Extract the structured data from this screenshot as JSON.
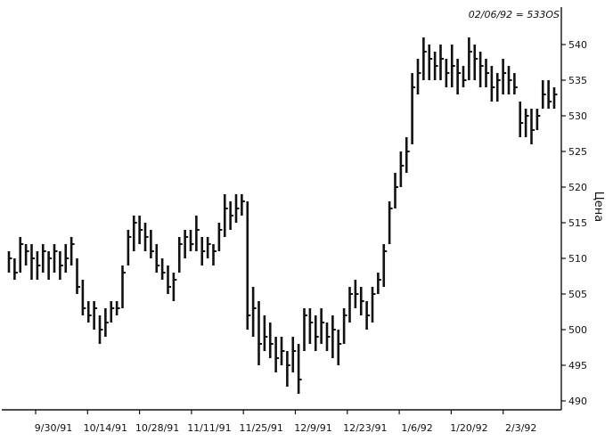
{
  "chart_data": {
    "type": "ohlc",
    "annotation": "02/06/92 = 533OS",
    "ylabel": "Цена",
    "ylim": [
      489,
      543
    ],
    "y_ticks": [
      490,
      495,
      500,
      505,
      510,
      515,
      520,
      525,
      530,
      535,
      540
    ],
    "x_ticks": [
      "9/30/91",
      "10/14/91",
      "10/28/91",
      "11/11/91",
      "11/25/91",
      "12/9/91",
      "12/23/91",
      "1/6/92",
      "1/20/92",
      "2/3/92"
    ],
    "grid": false,
    "bars": [
      {
        "high": 511,
        "low": 508,
        "close": 510
      },
      {
        "high": 510,
        "low": 507,
        "close": 508
      },
      {
        "high": 513,
        "low": 508,
        "close": 512
      },
      {
        "high": 512,
        "low": 509,
        "close": 511
      },
      {
        "high": 512,
        "low": 507,
        "close": 510
      },
      {
        "high": 511,
        "low": 507,
        "close": 509
      },
      {
        "high": 512,
        "low": 508,
        "close": 511
      },
      {
        "high": 511,
        "low": 507,
        "close": 510
      },
      {
        "high": 512,
        "low": 508,
        "close": 511
      },
      {
        "high": 511,
        "low": 507,
        "close": 509
      },
      {
        "high": 512,
        "low": 508,
        "close": 510
      },
      {
        "high": 513,
        "low": 509,
        "close": 512
      },
      {
        "high": 510,
        "low": 505,
        "close": 506
      },
      {
        "high": 507,
        "low": 502,
        "close": 503
      },
      {
        "high": 504,
        "low": 501,
        "close": 502
      },
      {
        "high": 504,
        "low": 500,
        "close": 503
      },
      {
        "high": 502,
        "low": 498,
        "close": 500
      },
      {
        "high": 503,
        "low": 499,
        "close": 501
      },
      {
        "high": 504,
        "low": 501,
        "close": 503
      },
      {
        "high": 504,
        "low": 502,
        "close": 503
      },
      {
        "high": 509,
        "low": 503,
        "close": 508
      },
      {
        "high": 514,
        "low": 509,
        "close": 513
      },
      {
        "high": 516,
        "low": 511,
        "close": 515
      },
      {
        "high": 516,
        "low": 512,
        "close": 514
      },
      {
        "high": 515,
        "low": 511,
        "close": 513
      },
      {
        "high": 514,
        "low": 510,
        "close": 511
      },
      {
        "high": 512,
        "low": 508,
        "close": 509
      },
      {
        "high": 510,
        "low": 507,
        "close": 508
      },
      {
        "high": 509,
        "low": 505,
        "close": 506
      },
      {
        "high": 508,
        "low": 504,
        "close": 507
      },
      {
        "high": 513,
        "low": 508,
        "close": 512
      },
      {
        "high": 514,
        "low": 510,
        "close": 513
      },
      {
        "high": 514,
        "low": 511,
        "close": 512
      },
      {
        "high": 516,
        "low": 511,
        "close": 514
      },
      {
        "high": 513,
        "low": 509,
        "close": 511
      },
      {
        "high": 513,
        "low": 510,
        "close": 512
      },
      {
        "high": 512,
        "low": 509,
        "close": 511
      },
      {
        "high": 515,
        "low": 511,
        "close": 514
      },
      {
        "high": 519,
        "low": 513,
        "close": 517
      },
      {
        "high": 518,
        "low": 514,
        "close": 516
      },
      {
        "high": 519,
        "low": 515,
        "close": 517
      },
      {
        "high": 519,
        "low": 516,
        "close": 518
      },
      {
        "high": 518,
        "low": 500,
        "close": 502
      },
      {
        "high": 506,
        "low": 499,
        "close": 503
      },
      {
        "high": 504,
        "low": 495,
        "close": 498
      },
      {
        "high": 502,
        "low": 497,
        "close": 499
      },
      {
        "high": 501,
        "low": 496,
        "close": 498
      },
      {
        "high": 499,
        "low": 494,
        "close": 496
      },
      {
        "high": 499,
        "low": 495,
        "close": 497
      },
      {
        "high": 497,
        "low": 492,
        "close": 495
      },
      {
        "high": 499,
        "low": 494,
        "close": 497
      },
      {
        "high": 498,
        "low": 491,
        "close": 493
      },
      {
        "high": 503,
        "low": 497,
        "close": 502
      },
      {
        "high": 503,
        "low": 498,
        "close": 501
      },
      {
        "high": 502,
        "low": 497,
        "close": 499
      },
      {
        "high": 503,
        "low": 498,
        "close": 501
      },
      {
        "high": 501,
        "low": 497,
        "close": 499
      },
      {
        "high": 502,
        "low": 496,
        "close": 500
      },
      {
        "high": 500,
        "low": 495,
        "close": 498
      },
      {
        "high": 503,
        "low": 498,
        "close": 502
      },
      {
        "high": 506,
        "low": 501,
        "close": 505
      },
      {
        "high": 507,
        "low": 503,
        "close": 505
      },
      {
        "high": 506,
        "low": 502,
        "close": 504
      },
      {
        "high": 504,
        "low": 500,
        "close": 502
      },
      {
        "high": 506,
        "low": 501,
        "close": 505
      },
      {
        "high": 508,
        "low": 505,
        "close": 507
      },
      {
        "high": 512,
        "low": 506,
        "close": 511
      },
      {
        "high": 518,
        "low": 512,
        "close": 517
      },
      {
        "high": 522,
        "low": 517,
        "close": 520
      },
      {
        "high": 525,
        "low": 520,
        "close": 523
      },
      {
        "high": 527,
        "low": 522,
        "close": 525
      },
      {
        "high": 536,
        "low": 526,
        "close": 534
      },
      {
        "high": 538,
        "low": 533,
        "close": 536
      },
      {
        "high": 541,
        "low": 535,
        "close": 539
      },
      {
        "high": 540,
        "low": 535,
        "close": 538
      },
      {
        "high": 539,
        "low": 535,
        "close": 537
      },
      {
        "high": 540,
        "low": 535,
        "close": 538
      },
      {
        "high": 538,
        "low": 534,
        "close": 536
      },
      {
        "high": 540,
        "low": 534,
        "close": 537
      },
      {
        "high": 538,
        "low": 533,
        "close": 536
      },
      {
        "high": 537,
        "low": 534,
        "close": 535
      },
      {
        "high": 541,
        "low": 535,
        "close": 539
      },
      {
        "high": 540,
        "low": 535,
        "close": 538
      },
      {
        "high": 539,
        "low": 534,
        "close": 537
      },
      {
        "high": 538,
        "low": 534,
        "close": 536
      },
      {
        "high": 537,
        "low": 532,
        "close": 534
      },
      {
        "high": 536,
        "low": 532,
        "close": 535
      },
      {
        "high": 538,
        "low": 533,
        "close": 536
      },
      {
        "high": 537,
        "low": 533,
        "close": 535
      },
      {
        "high": 536,
        "low": 533,
        "close": 534
      },
      {
        "high": 532,
        "low": 527,
        "close": 529
      },
      {
        "high": 531,
        "low": 527,
        "close": 530
      },
      {
        "high": 531,
        "low": 526,
        "close": 528
      },
      {
        "high": 531,
        "low": 528,
        "close": 530
      },
      {
        "high": 535,
        "low": 531,
        "close": 533
      },
      {
        "high": 535,
        "low": 531,
        "close": 532
      },
      {
        "high": 534,
        "low": 531,
        "close": 533
      }
    ]
  }
}
